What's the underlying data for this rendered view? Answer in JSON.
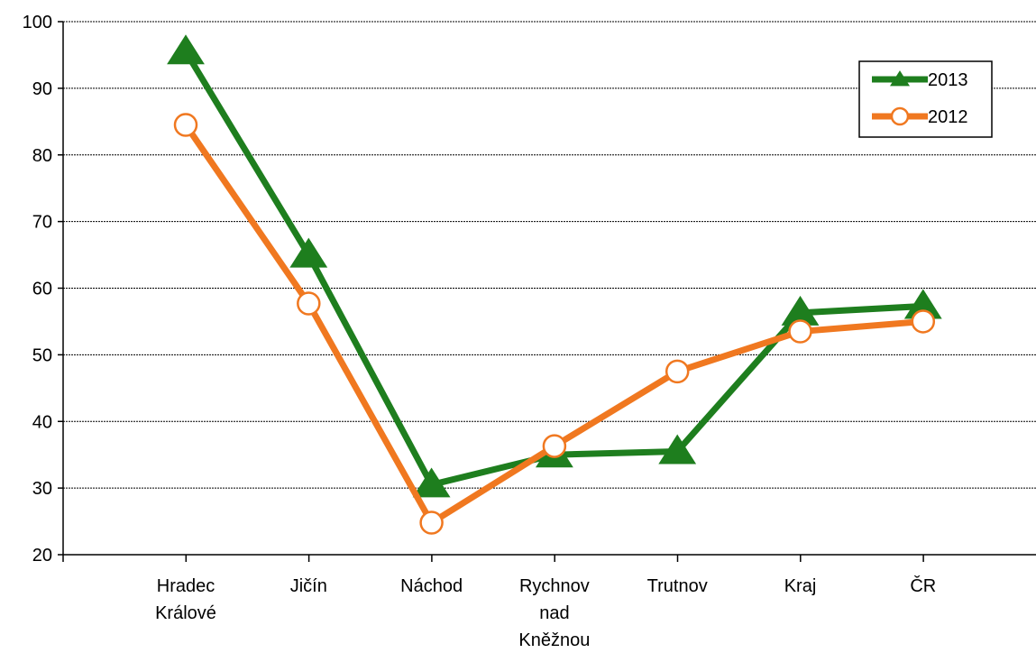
{
  "chart_data": {
    "type": "line",
    "categories": [
      [
        "Hradec",
        "Králové"
      ],
      [
        "Jičín"
      ],
      [
        "Náchod"
      ],
      [
        "Rychnov",
        "nad",
        "Kněžnou"
      ],
      [
        "Trutnov"
      ],
      [
        "Kraj"
      ],
      [
        "ČR"
      ]
    ],
    "series": [
      {
        "name": "2013",
        "color": "#1e7e1e",
        "marker": "triangle",
        "values": [
          95.5,
          65.0,
          30.5,
          35.0,
          35.5,
          56.3,
          57.3
        ]
      },
      {
        "name": "2012",
        "color": "#f07820",
        "marker": "circle-open",
        "values": [
          84.5,
          57.7,
          24.8,
          36.3,
          47.5,
          53.5,
          55.0
        ]
      }
    ],
    "yticks": [
      "20",
      "30",
      "40",
      "50",
      "60",
      "70",
      "80",
      "90",
      "100"
    ],
    "ylim": [
      20,
      100
    ],
    "grid": true,
    "legend_position": "top-right"
  }
}
